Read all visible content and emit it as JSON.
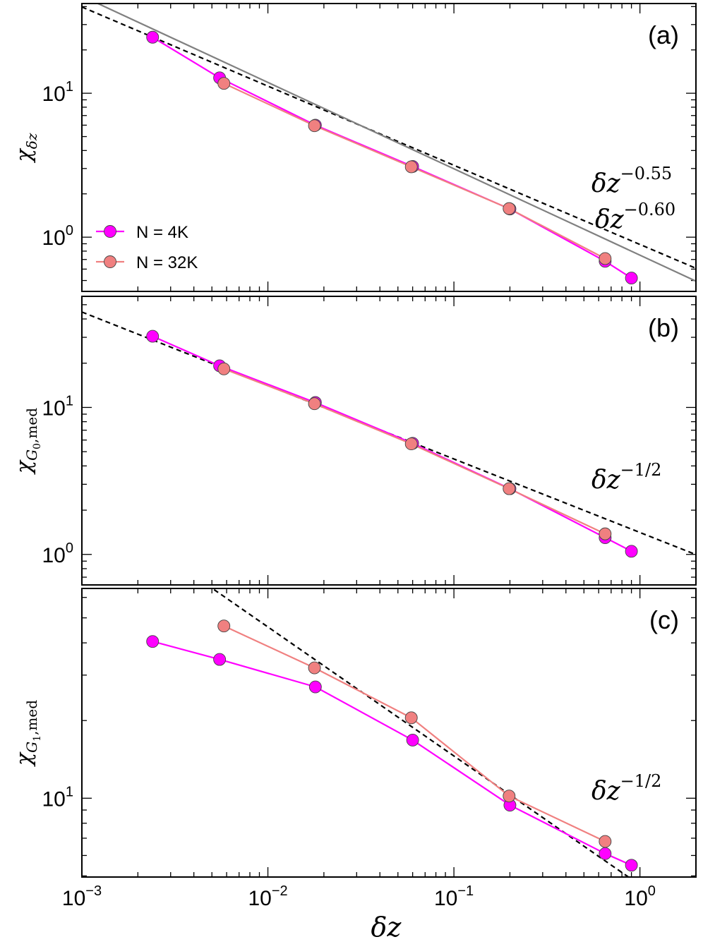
{
  "chart_data": [
    {
      "panel_label": "(a)",
      "type": "line",
      "xscale": "log",
      "yscale": "log",
      "xlim": [
        0.001,
        2.0
      ],
      "ylim": [
        0.42,
        42
      ],
      "ytick_labels": [
        {
          "value": 1,
          "base": "10",
          "exp": "0"
        },
        {
          "value": 10,
          "base": "10",
          "exp": "1"
        }
      ],
      "ylabel": {
        "symbol": "χ",
        "sub": "δz"
      },
      "legend": {
        "position": "lower-left",
        "entries": [
          "N = 4K",
          "N = 32K"
        ]
      },
      "series": [
        {
          "name": "N = 4K",
          "color": "#ff00ff",
          "x": [
            0.0024,
            0.0055,
            0.018,
            0.06,
            0.2,
            0.65,
            0.9
          ],
          "y": [
            24.5,
            12.8,
            6.0,
            3.1,
            1.57,
            0.68,
            0.52
          ]
        },
        {
          "name": "N = 32K",
          "color": "#f08080",
          "x": [
            0.0058,
            0.0178,
            0.059,
            0.198,
            0.65
          ],
          "y": [
            11.7,
            5.95,
            3.08,
            1.58,
            0.71
          ]
        }
      ],
      "fits": [
        {
          "style": "dashed",
          "color": "#000000",
          "amplitude": 0.89,
          "exponent": -0.55,
          "label_base": "δz",
          "label_exp": "−0.55"
        },
        {
          "style": "solid",
          "color": "#808080",
          "amplitude": 0.75,
          "exponent": -0.6,
          "label_base": "δz",
          "label_exp": "−0.60"
        }
      ]
    },
    {
      "panel_label": "(b)",
      "type": "line",
      "xscale": "log",
      "yscale": "log",
      "xlim": [
        0.001,
        2.0
      ],
      "ylim": [
        0.62,
        57
      ],
      "ytick_labels": [
        {
          "value": 1,
          "base": "10",
          "exp": "0"
        },
        {
          "value": 10,
          "base": "10",
          "exp": "1"
        }
      ],
      "ylabel": {
        "symbol": "χ",
        "sub": "G",
        "subsub": "0",
        "subtail": ",med"
      },
      "series": [
        {
          "name": "N = 4K",
          "color": "#ff00ff",
          "x": [
            0.0024,
            0.0055,
            0.018,
            0.06,
            0.2,
            0.65,
            0.9
          ],
          "y": [
            30.5,
            19.2,
            10.8,
            5.7,
            2.8,
            1.3,
            1.05
          ]
        },
        {
          "name": "N = 32K",
          "color": "#f08080",
          "x": [
            0.0058,
            0.0178,
            0.059,
            0.198,
            0.65
          ],
          "y": [
            18.3,
            10.6,
            5.65,
            2.8,
            1.38
          ]
        }
      ],
      "fits": [
        {
          "style": "dashed",
          "color": "#000000",
          "amplitude": 1.41,
          "exponent": -0.5,
          "label_base": "δz",
          "label_exp": "−1/2"
        }
      ]
    },
    {
      "panel_label": "(c)",
      "type": "line",
      "xscale": "log",
      "yscale": "log",
      "xlim": [
        0.001,
        2.0
      ],
      "ylim": [
        4.95,
        65
      ],
      "ytick_labels": [
        {
          "value": 10,
          "base": "10",
          "exp": "1"
        }
      ],
      "ylabel": {
        "symbol": "χ",
        "sub": "G",
        "subsub": "1",
        "subtail": ",med"
      },
      "xlabel": "δz",
      "xtick_labels": [
        {
          "value": 0.001,
          "base": "10",
          "exp": "−3"
        },
        {
          "value": 0.01,
          "base": "10",
          "exp": "−2"
        },
        {
          "value": 0.1,
          "base": "10",
          "exp": "−1"
        },
        {
          "value": 1,
          "base": "10",
          "exp": "0"
        }
      ],
      "series": [
        {
          "name": "N = 4K",
          "color": "#ff00ff",
          "x": [
            0.0024,
            0.0055,
            0.018,
            0.06,
            0.2,
            0.65,
            0.9
          ],
          "y": [
            40.5,
            34.5,
            27.0,
            16.8,
            9.4,
            6.1,
            5.5
          ]
        },
        {
          "name": "N = 32K",
          "color": "#f08080",
          "x": [
            0.0058,
            0.0178,
            0.059,
            0.198,
            0.65
          ],
          "y": [
            46.5,
            32.0,
            20.5,
            10.2,
            6.8
          ]
        }
      ],
      "fits": [
        {
          "style": "dashed",
          "color": "#000000",
          "amplitude": 4.61,
          "exponent": -0.5,
          "label_base": "δz",
          "label_exp": "−1/2"
        }
      ]
    }
  ]
}
